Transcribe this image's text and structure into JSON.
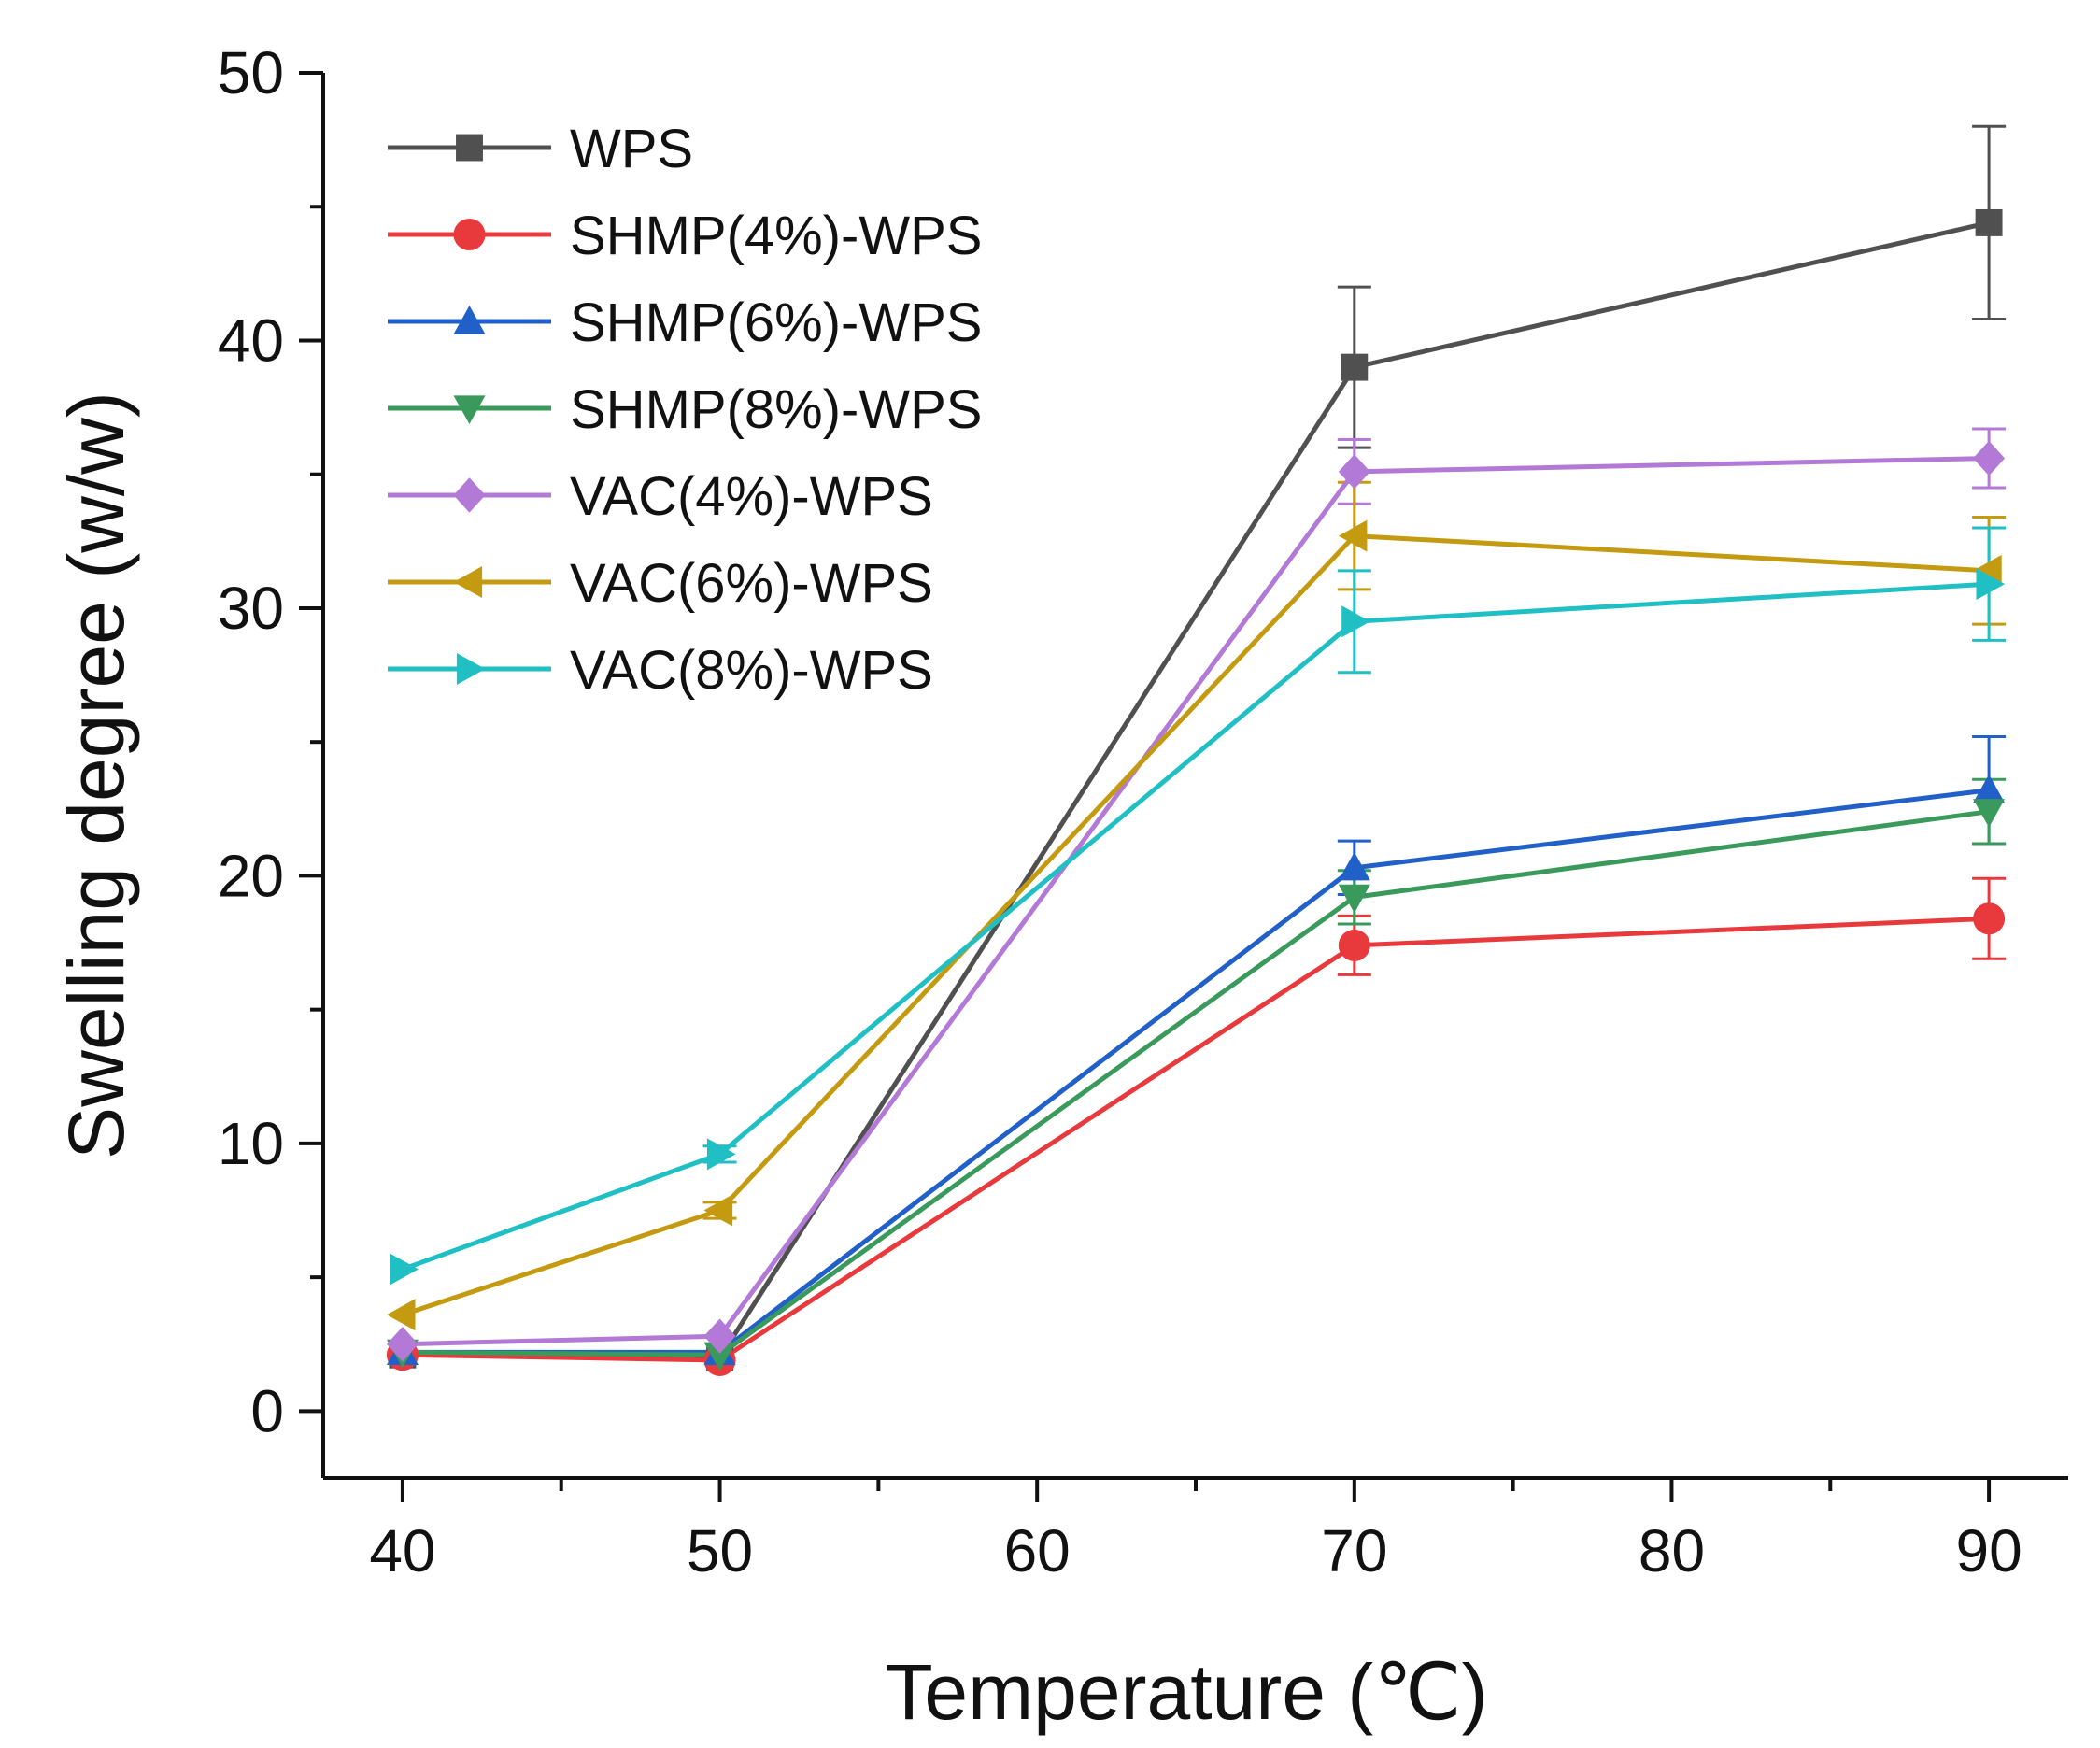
{
  "chart_data": {
    "type": "line",
    "title": "",
    "xlabel": "Temperature (℃)",
    "ylabel": "Swelling degree (w/w)",
    "xlim": [
      37.5,
      92.5
    ],
    "ylim": [
      -2.5,
      50
    ],
    "xticks": [
      "40",
      "50",
      "60",
      "70",
      "80",
      "90"
    ],
    "yticks": [
      "0",
      "10",
      "20",
      "30",
      "40",
      "50"
    ],
    "x": [
      40,
      50,
      70,
      90
    ],
    "legend_position": "top-left",
    "grid": false,
    "series": [
      {
        "name": "WPS",
        "color": "#505050",
        "marker": "square",
        "values": [
          2.1,
          2.0,
          39.0,
          44.4
        ],
        "errors": [
          0.2,
          0.2,
          3.0,
          3.6
        ]
      },
      {
        "name": "SHMP(4%)-WPS",
        "color": "#e8393c",
        "marker": "circle",
        "values": [
          2.1,
          1.9,
          17.4,
          18.4
        ],
        "errors": [
          0.2,
          0.2,
          1.1,
          1.5
        ]
      },
      {
        "name": "SHMP(6%)-WPS",
        "color": "#2060c8",
        "marker": "triangle-up",
        "values": [
          2.2,
          2.2,
          20.3,
          23.2
        ],
        "errors": [
          0.2,
          0.2,
          1.0,
          2.0
        ]
      },
      {
        "name": "SHMP(8%)-WPS",
        "color": "#3a9a5c",
        "marker": "triangle-down",
        "values": [
          2.2,
          2.1,
          19.2,
          22.4
        ],
        "errors": [
          0.2,
          0.2,
          1.0,
          1.2
        ]
      },
      {
        "name": "VAC(4%)-WPS",
        "color": "#b27ad6",
        "marker": "diamond",
        "values": [
          2.5,
          2.8,
          35.1,
          35.6
        ],
        "errors": [
          0.2,
          0.2,
          1.2,
          1.1
        ]
      },
      {
        "name": "VAC(6%)-WPS",
        "color": "#c49a10",
        "marker": "triangle-left",
        "values": [
          3.6,
          7.5,
          32.7,
          31.4
        ],
        "errors": [
          0.2,
          0.3,
          2.0,
          2.0
        ]
      },
      {
        "name": "VAC(8%)-WPS",
        "color": "#1fbfc4",
        "marker": "triangle-right",
        "values": [
          5.3,
          9.6,
          29.5,
          30.9
        ],
        "errors": [
          0.2,
          0.3,
          1.9,
          2.1
        ]
      }
    ]
  }
}
